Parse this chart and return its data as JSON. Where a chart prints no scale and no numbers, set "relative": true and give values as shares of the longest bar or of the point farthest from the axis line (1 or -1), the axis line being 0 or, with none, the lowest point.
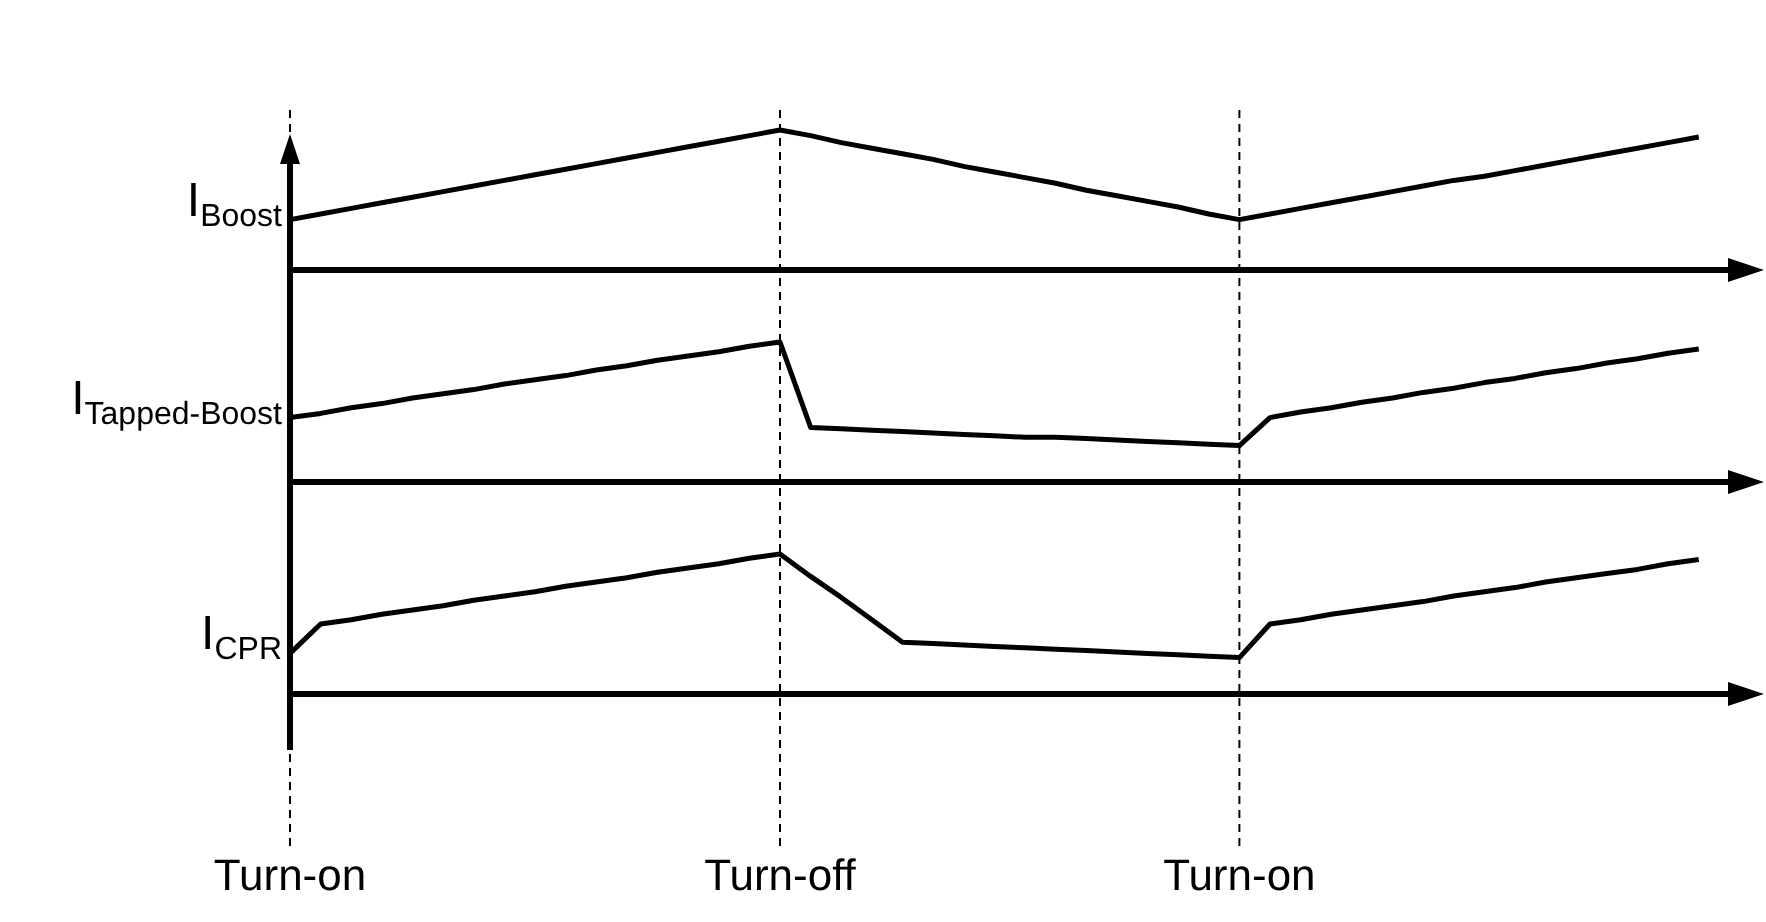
{
  "chart_data": [
    {
      "type": "line",
      "ylabel": "I$_{Boost}$",
      "relative": true,
      "tick_labels": false,
      "categories": [
        null,
        null,
        null,
        null,
        null,
        null,
        null,
        null,
        null,
        null,
        null,
        null,
        null,
        null,
        null,
        null,
        null,
        null,
        null,
        null,
        null,
        null,
        null,
        null,
        null,
        null,
        null,
        null,
        null,
        null,
        null,
        null,
        null,
        null,
        null,
        null,
        null,
        null,
        null,
        null,
        null,
        null,
        null,
        null,
        null,
        null,
        null
      ],
      "series": [
        {
          "color": "#000000",
          "values": [
            0.36,
            0.4,
            0.44,
            0.48,
            0.52,
            0.56,
            0.6,
            0.64,
            0.68,
            0.72,
            0.76,
            0.8,
            0.84,
            0.88,
            0.92,
            0.96,
            1.0,
            0.96,
            0.91,
            0.87,
            0.83,
            0.79,
            0.74,
            0.7,
            0.66,
            0.62,
            0.57,
            0.53,
            0.49,
            0.45,
            0.4,
            0.36,
            0.4,
            0.44,
            0.48,
            0.52,
            0.56,
            0.6,
            0.64,
            0.67,
            0.71,
            0.75,
            0.79,
            0.83,
            0.87,
            0.91,
            0.95
          ]
        }
      ]
    },
    {
      "type": "line",
      "ylabel": "I$_{Tapped-Boost}$",
      "relative": true,
      "tick_labels": false,
      "categories": [
        null,
        null,
        null,
        null,
        null,
        null,
        null,
        null,
        null,
        null,
        null,
        null,
        null,
        null,
        null,
        null,
        null,
        null,
        null,
        null,
        null,
        null,
        null,
        null,
        null,
        null,
        null,
        null,
        null,
        null,
        null,
        null,
        null,
        null,
        null,
        null,
        null,
        null,
        null,
        null,
        null,
        null,
        null,
        null,
        null,
        null,
        null
      ],
      "series": [
        {
          "color": "#000000",
          "values": [
            0.46,
            0.49,
            0.53,
            0.56,
            0.6,
            0.63,
            0.66,
            0.7,
            0.73,
            0.76,
            0.8,
            0.83,
            0.87,
            0.9,
            0.93,
            0.97,
            1.0,
            0.39,
            0.38,
            0.37,
            0.36,
            0.35,
            0.34,
            0.33,
            0.32,
            0.32,
            0.31,
            0.3,
            0.29,
            0.28,
            0.27,
            0.26,
            0.46,
            0.5,
            0.53,
            0.57,
            0.6,
            0.64,
            0.67,
            0.71,
            0.74,
            0.78,
            0.81,
            0.85,
            0.88,
            0.92,
            0.95
          ]
        }
      ]
    },
    {
      "type": "line",
      "ylabel": "I$_{CPR}$",
      "relative": true,
      "grid": "x",
      "tick_labels": "x",
      "categories": [
        "Turn-on",
        null,
        null,
        null,
        null,
        null,
        null,
        null,
        null,
        null,
        null,
        null,
        null,
        null,
        null,
        null,
        "Turn-off",
        null,
        null,
        null,
        null,
        null,
        null,
        null,
        null,
        null,
        null,
        null,
        null,
        null,
        null,
        "Turn-on",
        null,
        null,
        null,
        null,
        null,
        null,
        null,
        null,
        null,
        null,
        null,
        null,
        null,
        null,
        null
      ],
      "series": [
        {
          "color": "#000000",
          "values": [
            0.29,
            0.5,
            0.53,
            0.57,
            0.6,
            0.63,
            0.67,
            0.7,
            0.73,
            0.77,
            0.8,
            0.83,
            0.87,
            0.9,
            0.93,
            0.97,
            1.0,
            0.84,
            0.69,
            0.53,
            0.37,
            0.36,
            0.35,
            0.34,
            0.33,
            0.32,
            0.31,
            0.3,
            0.29,
            0.28,
            0.27,
            0.26,
            0.5,
            0.53,
            0.57,
            0.6,
            0.63,
            0.66,
            0.7,
            0.73,
            0.76,
            0.8,
            0.83,
            0.86,
            0.89,
            0.93,
            0.96
          ]
        }
      ]
    }
  ]
}
